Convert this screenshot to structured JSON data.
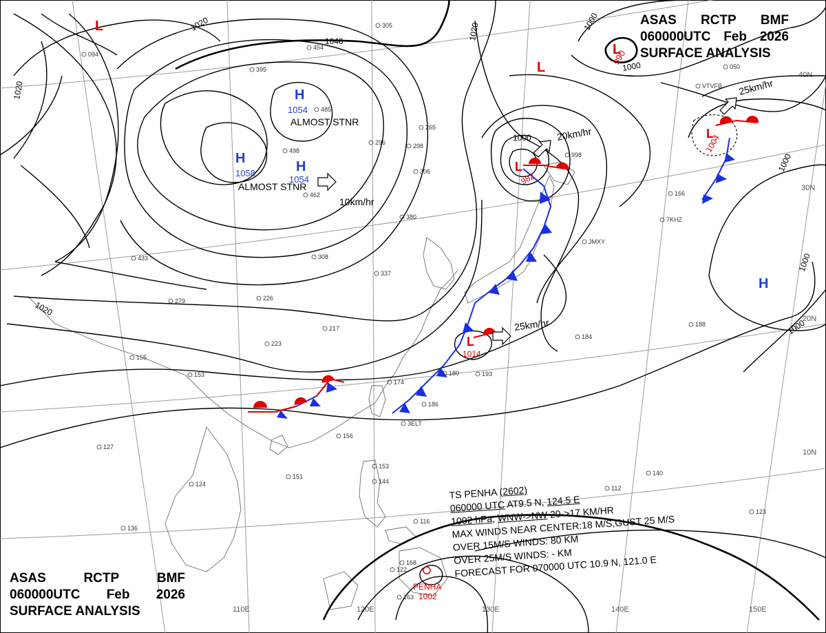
{
  "header": {
    "line1": [
      "ASAS",
      "RCTP",
      "BMF"
    ],
    "line2": [
      "060000UTC",
      "Feb",
      "2026"
    ],
    "line3": "SURFACE ANALYSIS"
  },
  "colors": {
    "isobar": "#000000",
    "grid": "#9a9a9a",
    "coast": "#6e6e6e",
    "high": "#1e3fd0",
    "low": "#d90000",
    "cold_front": "#1a2fe0",
    "warm_front": "#e00000"
  },
  "latitude_labels": [
    "40N",
    "30N",
    "20N",
    "10N"
  ],
  "longitude_labels": [
    "110E",
    "120E",
    "130E",
    "140E",
    "150E"
  ],
  "isobar_labels": [
    "1020",
    "1040",
    "1020",
    "1020",
    "1020",
    "1000",
    "1000",
    "1000",
    "1000",
    "1000",
    "1000"
  ],
  "pressure_centers": [
    {
      "type": "H",
      "value": "1054",
      "note": "ALMOST STNR"
    },
    {
      "type": "H",
      "value": "1058",
      "note": "ALMOST STNR"
    },
    {
      "type": "H",
      "value": "1054",
      "note": ""
    },
    {
      "type": "H",
      "value": "",
      "note": ""
    },
    {
      "type": "L",
      "value": "",
      "note": ""
    },
    {
      "type": "L",
      "value": "990",
      "note": ""
    },
    {
      "type": "L",
      "value": "",
      "note": ""
    },
    {
      "type": "L",
      "value": "982",
      "note": ""
    },
    {
      "type": "L",
      "value": "1004",
      "note": ""
    },
    {
      "type": "L",
      "value": "1014",
      "note": ""
    }
  ],
  "motion_labels": [
    "10km/hr",
    "20km/hr",
    "25km/hr",
    "25km/hr"
  ],
  "tropical_storm": {
    "center_label": "PENHA",
    "center_pressure": "1002",
    "line1_prefix": "TS  PENHA  ",
    "line1_id": "(2602)",
    "line2_time": "060000 UTC",
    "line2_at": "  AT9.5 N, ",
    "line2_lon": "124.5 E",
    "line3_pressure": "1002 hPa",
    "line3_sep": ", ",
    "line3_dir": "WNW->NW",
    "line3_speed": "  20->17 KM/HR",
    "line4": "MAX WINDS NEAR CENTER:18 M/S,GUST 25 M/S",
    "line5": "OVER 15M/S WINDS: 80 KM",
    "line6": "OVER 25M/S WINDS: - KM",
    "line7": "FORECAST FOR 070000 UTC 10.9 N, 121.0 E"
  },
  "station_plots": [
    "094",
    "305",
    "454",
    "395",
    "485",
    "265",
    "298",
    "296",
    "306",
    "498",
    "462",
    "380",
    "433",
    "279",
    "226",
    "308",
    "337",
    "217",
    "223",
    "155",
    "153",
    "174",
    "186",
    "180",
    "193",
    "127",
    "156",
    "151",
    "124",
    "136",
    "153",
    "144",
    "116",
    "122",
    "163",
    "112",
    "140",
    "123",
    "184",
    "188",
    "166",
    "050",
    "168",
    "998",
    "3ELT",
    "JMXY",
    "7KHZ",
    "VTVFB"
  ]
}
